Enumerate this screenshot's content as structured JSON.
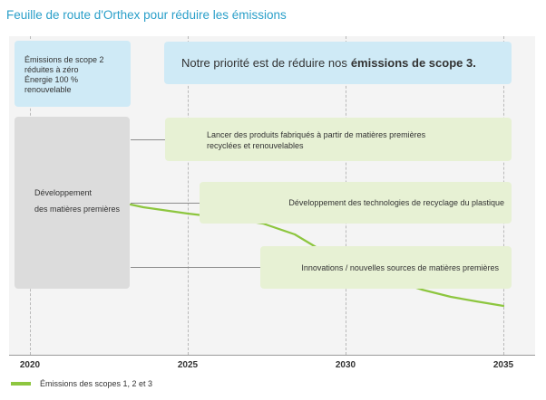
{
  "title": "Feuille de route d'Orthex pour réduire les émissions",
  "scope2_box": {
    "lines": [
      "Émissions de scope 2",
      "réduites à zéro",
      "Énergie 100 %",
      "renouvelable"
    ]
  },
  "priority_box": {
    "text": "Notre priorité est de réduire nos",
    "bold": "émissions de scope 3."
  },
  "development_box": {
    "lines": [
      "Développement",
      "des matières premières"
    ]
  },
  "initiatives": [
    {
      "lines": [
        "Lancer des produits fabriqués à partir de matières premières",
        "recyclées et renouvelables"
      ]
    },
    {
      "lines": [
        "Développement des technologies de recyclage du plastique"
      ]
    },
    {
      "lines": [
        "Innovations / nouvelles sources de matières premières"
      ]
    }
  ],
  "x_axis": {
    "years": [
      "2020",
      "2025",
      "2030",
      "2035"
    ]
  },
  "legend": {
    "label": "Émissions des scopes 1, 2 et 3"
  },
  "colors": {
    "accent": "#2a9fc9",
    "trend_line": "#8dc63f",
    "green_box": "#e7f1d4",
    "blue_box": "#cfeaf6",
    "grey_box": "#dcdcdc"
  }
}
